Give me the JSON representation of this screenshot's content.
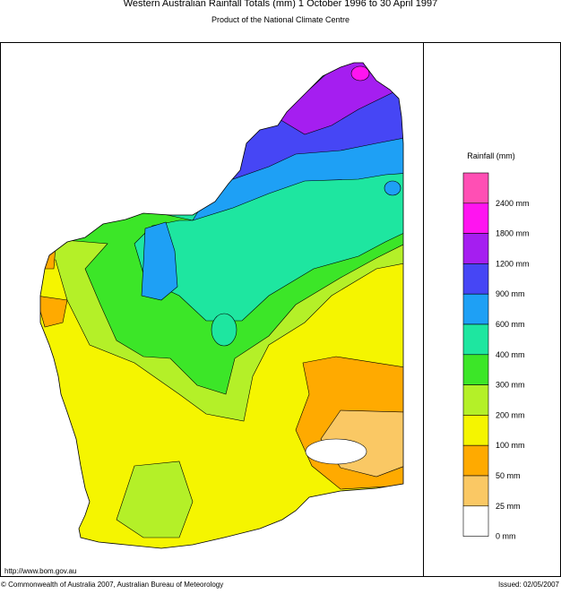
{
  "header": {
    "title": "Western Australian Rainfall Totals (mm) 1 October 1996 to 30 April 1997",
    "subtitle": "Product of the National Climate Centre"
  },
  "legend": {
    "title": "Rainfall (mm)",
    "items": [
      {
        "label": "2400 mm",
        "color": "#ff4fb4"
      },
      {
        "label": "1800 mm",
        "color": "#ff14f0"
      },
      {
        "label": "1200 mm",
        "color": "#a51ef0"
      },
      {
        "label": "900 mm",
        "color": "#4646f5"
      },
      {
        "label": "600 mm",
        "color": "#1ea0f5"
      },
      {
        "label": "400 mm",
        "color": "#1ee6a0"
      },
      {
        "label": "300 mm",
        "color": "#3ce628"
      },
      {
        "label": "200 mm",
        "color": "#b4f028"
      },
      {
        "label": "100 mm",
        "color": "#f5f500"
      },
      {
        "label": "50 mm",
        "color": "#ffaa00"
      },
      {
        "label": "25 mm",
        "color": "#fac864"
      },
      {
        "label": "0 mm",
        "color": "#ffffff"
      }
    ]
  },
  "footer": {
    "url": "http://www.bom.gov.au",
    "copyright": "© Commonwealth of Australia 2007, Australian Bureau of Meteorology",
    "issued": "Issued: 02/05/2007"
  }
}
